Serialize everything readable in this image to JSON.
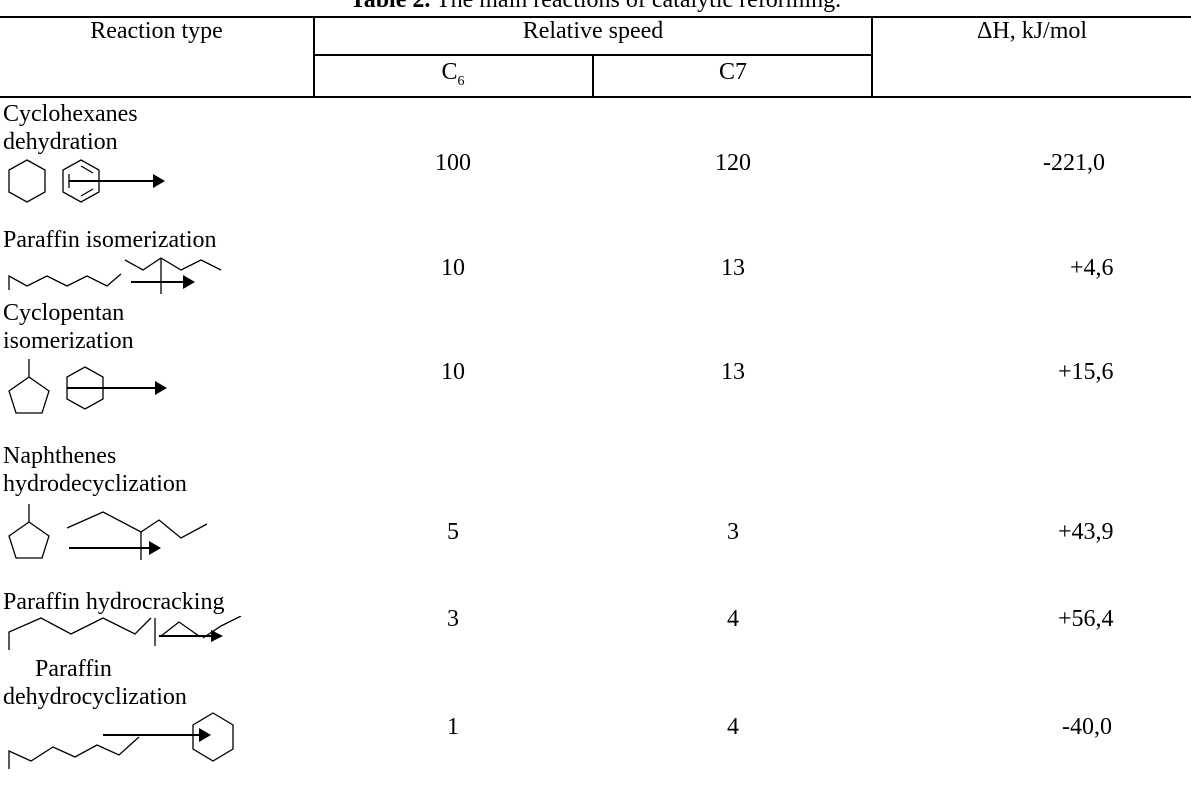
{
  "caption": {
    "label": "Table 2.",
    "text": " The main reactions of catalytic reforming."
  },
  "header": {
    "reaction_type": "Reaction type",
    "relative_speed": "Relative speed",
    "delta_h": "ΔH, kJ/mol",
    "c6_base": "C",
    "c6_sub": "6",
    "c7": "C7"
  },
  "rows": [
    {
      "name": "Cyclohexanes dehydration",
      "name_line1": "Cyclohexanes",
      "name_line2": "dehydration",
      "c6": "100",
      "c7": "120",
      "dh": "-221,0",
      "structure": "cyclohexane-to-benzene"
    },
    {
      "name": "Paraffin isomerization",
      "name_line1": "Paraffin isomerization",
      "c6": "10",
      "c7": "13",
      "dh": "+4,6",
      "structure": "n-paraffin-to-isoparaffin"
    },
    {
      "name": "Cyclopentan isomerization",
      "name_line1": "Cyclopentan",
      "name_line2": "isomerization",
      "c6": "10",
      "c7": "13",
      "dh": "+15,6",
      "structure": "methylcyclopentane-to-cyclohexane"
    },
    {
      "name": "Naphthenes hydrodecyclization",
      "name_line1": "Naphthenes",
      "name_line2": "hydrodecyclization",
      "c6": "5",
      "c7": "3",
      "dh": "+43,9",
      "structure": "methylcyclopentane-to-isoparaffin"
    },
    {
      "name": "Paraffin hydrocracking",
      "name_line1": "Paraffin hydrocracking",
      "c6": "3",
      "c7": "4",
      "dh": "+56,4",
      "structure": "paraffin-to-short-paraffins"
    },
    {
      "name": "Paraffin dehydrocyclization",
      "name_line1": "Paraffin",
      "name_line2": "dehydrocyclization",
      "c6": "1",
      "c7": "4",
      "dh": "-40,0",
      "structure": "paraffin-to-benzene"
    }
  ]
}
